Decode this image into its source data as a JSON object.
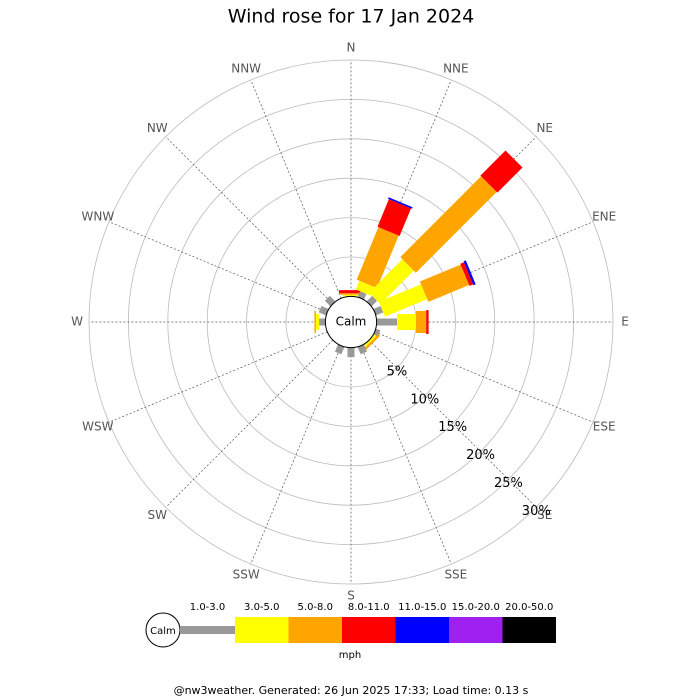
{
  "chart_data": {
    "type": "windrose",
    "title": "Wind rose for 17 Jan 2024",
    "categories": [
      "N",
      "NNE",
      "NE",
      "ENE",
      "E",
      "ESE",
      "SE",
      "SSE",
      "S",
      "SSW",
      "SW",
      "WSW",
      "W",
      "WNW",
      "NW",
      "NNW"
    ],
    "series": [
      {
        "name": "1.0-3.0",
        "color": "#999999",
        "values": [
          0,
          0.8,
          1,
          1,
          2.6,
          0.6,
          0,
          1,
          1.2,
          1,
          0,
          0,
          0.8,
          1,
          1,
          0
        ]
      },
      {
        "name": "3.0-5.0",
        "color": "#ffff00",
        "values": [
          0.2,
          1.2,
          6,
          5.8,
          2.4,
          0,
          0.3,
          0,
          0,
          0,
          0,
          0,
          0.4,
          0,
          0,
          0
        ]
      },
      {
        "name": "5.0-8.0",
        "color": "#ffa500",
        "values": [
          0.2,
          7.2,
          14.5,
          5.6,
          1.3,
          0,
          0.3,
          0,
          0,
          0,
          0,
          0,
          0.2,
          0,
          0,
          0
        ]
      },
      {
        "name": "8.0-11.0",
        "color": "#ff0000",
        "values": [
          0.4,
          3.8,
          4.5,
          0.5,
          0.3,
          0,
          0,
          0,
          0,
          0,
          0,
          0,
          0,
          0,
          0,
          0
        ]
      },
      {
        "name": "11.0-15.0",
        "color": "#0000ff",
        "values": [
          0,
          0.2,
          0,
          0.3,
          0,
          0,
          0,
          0,
          0,
          0,
          0,
          0,
          0,
          0,
          0,
          0
        ]
      },
      {
        "name": "15.0-20.0",
        "color": "#a020f0",
        "values": [
          0,
          0,
          0,
          0,
          0,
          0,
          0,
          0,
          0,
          0,
          0,
          0,
          0,
          0,
          0,
          0
        ]
      },
      {
        "name": "20.0-50.0",
        "color": "#000000",
        "values": [
          0,
          0,
          0,
          0,
          0,
          0,
          0,
          0,
          0,
          0,
          0,
          0,
          0,
          0,
          0,
          0
        ]
      }
    ],
    "rlim": [
      0,
      30
    ],
    "rticks": [
      {
        "value": 5,
        "label": "5%"
      },
      {
        "value": 10,
        "label": "10%"
      },
      {
        "value": 15,
        "label": "15%"
      },
      {
        "value": 20,
        "label": "20%"
      },
      {
        "value": 25,
        "label": "25%"
      },
      {
        "value": 30,
        "label": "30%"
      }
    ],
    "calm_label": "Calm",
    "unit": "mph",
    "footer": "@nw3weather. Generated: 26 Jun 2025 17:33; Load time: 0.13 s"
  }
}
